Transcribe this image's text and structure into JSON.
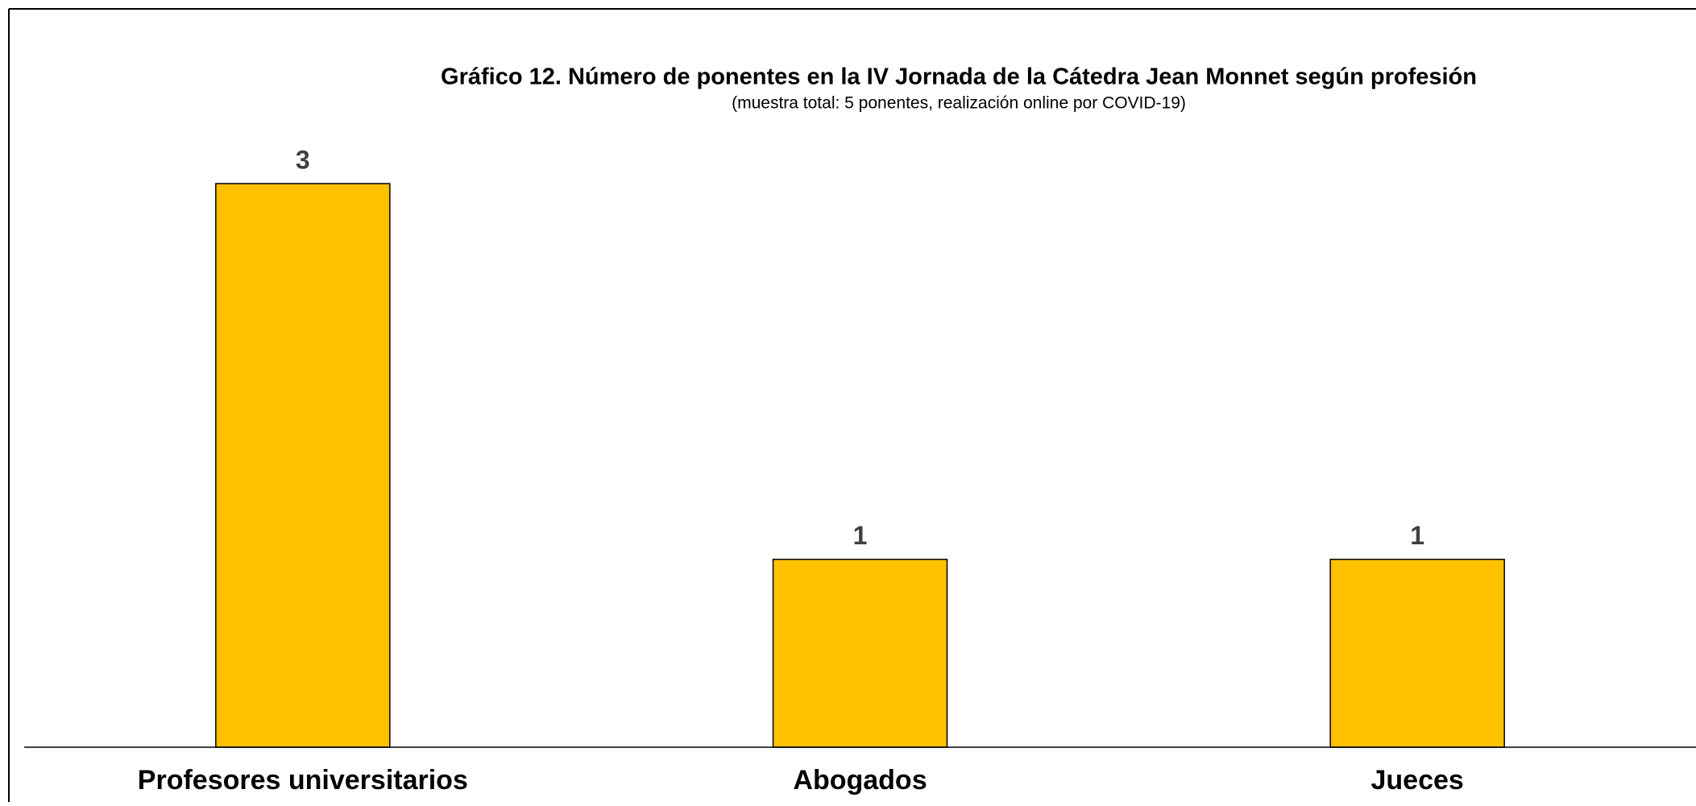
{
  "chart_data": {
    "type": "bar",
    "title": "Gráfico 12. Número de ponentes en la IV Jornada de la Cátedra Jean Monnet según profesión",
    "subtitle": "(muestra total: 5 ponentes, realización online por COVID-19)",
    "categories": [
      "Profesores universitarios",
      "Abogados",
      "Jueces"
    ],
    "values": [
      3,
      1,
      1
    ],
    "color": "#ffc000"
  }
}
